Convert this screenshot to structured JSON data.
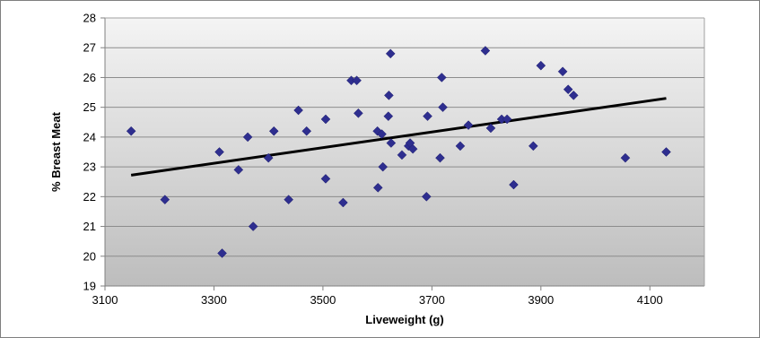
{
  "chart_data": {
    "type": "scatter",
    "title": "",
    "xlabel": "Liveweight (g)",
    "ylabel": "% Breast Meat",
    "xlim": [
      3100,
      4200
    ],
    "ylim": [
      19,
      28
    ],
    "x_ticks": [
      3100,
      3300,
      3500,
      3700,
      3900,
      4100
    ],
    "y_ticks": [
      19,
      20,
      21,
      22,
      23,
      24,
      25,
      26,
      27,
      28
    ],
    "grid": true,
    "legend": "none",
    "marker": "diamond",
    "marker_color": "#2e2e8f",
    "trendline_color": "#000000",
    "background_gradient": [
      "#f4f4f4",
      "#bdbdbd"
    ],
    "series": [
      {
        "points": [
          [
            3148,
            24.2
          ],
          [
            3210,
            21.9
          ],
          [
            3310,
            23.5
          ],
          [
            3315,
            20.1
          ],
          [
            3345,
            22.9
          ],
          [
            3362,
            24.0
          ],
          [
            3372,
            21.0
          ],
          [
            3400,
            23.3
          ],
          [
            3410,
            24.2
          ],
          [
            3437,
            21.9
          ],
          [
            3455,
            24.9
          ],
          [
            3470,
            24.2
          ],
          [
            3505,
            24.6
          ],
          [
            3505,
            22.6
          ],
          [
            3537,
            21.8
          ],
          [
            3552,
            25.9
          ],
          [
            3562,
            25.9
          ],
          [
            3565,
            24.8
          ],
          [
            3600,
            24.2
          ],
          [
            3601,
            22.3
          ],
          [
            3608,
            24.1
          ],
          [
            3610,
            23.0
          ],
          [
            3620,
            24.7
          ],
          [
            3621,
            25.4
          ],
          [
            3624,
            26.8
          ],
          [
            3625,
            23.8
          ],
          [
            3645,
            23.4
          ],
          [
            3657,
            23.7
          ],
          [
            3660,
            23.8
          ],
          [
            3665,
            23.6
          ],
          [
            3690,
            22.0
          ],
          [
            3692,
            24.7
          ],
          [
            3715,
            23.3
          ],
          [
            3718,
            26.0
          ],
          [
            3720,
            25.0
          ],
          [
            3752,
            23.7
          ],
          [
            3767,
            24.4
          ],
          [
            3798,
            26.9
          ],
          [
            3808,
            24.3
          ],
          [
            3828,
            24.6
          ],
          [
            3838,
            24.6
          ],
          [
            3850,
            22.4
          ],
          [
            3886,
            23.7
          ],
          [
            3900,
            26.4
          ],
          [
            3940,
            26.2
          ],
          [
            3950,
            25.6
          ],
          [
            3960,
            25.4
          ],
          [
            4055,
            23.3
          ],
          [
            4130,
            23.5
          ]
        ]
      }
    ],
    "trendline": {
      "x": [
        3148,
        4130
      ],
      "y": [
        22.72,
        25.3
      ]
    }
  }
}
